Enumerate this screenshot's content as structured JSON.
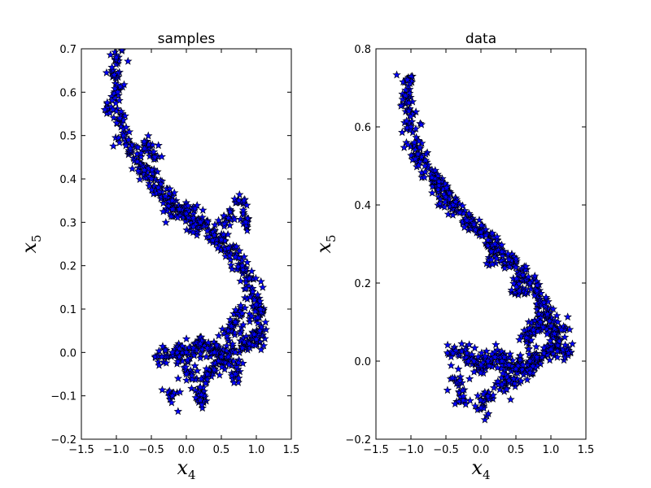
{
  "chart_data": [
    {
      "type": "scatter",
      "title": "samples",
      "xlabel_main": "x",
      "xlabel_sub": "4",
      "ylabel_main": "x",
      "ylabel_sub": "5",
      "xlim": [
        -1.5,
        1.5
      ],
      "ylim": [
        -0.2,
        0.7
      ],
      "xticks": [
        -1.5,
        -1.0,
        -0.5,
        0.0,
        0.5,
        1.0,
        1.5
      ],
      "xtick_labels": [
        "−1.5",
        "−1.0",
        "−0.5",
        "0.0",
        "0.5",
        "1.0",
        "1.5"
      ],
      "yticks": [
        -0.2,
        -0.1,
        0.0,
        0.1,
        0.2,
        0.3,
        0.4,
        0.5,
        0.6,
        0.7
      ],
      "ytick_labels": [
        "−0.2",
        "−0.1",
        "0.0",
        "0.1",
        "0.2",
        "0.3",
        "0.4",
        "0.5",
        "0.6",
        "0.7"
      ],
      "marker": "star",
      "marker_color": "#0000ff",
      "edge_color": "#000000",
      "grid": false,
      "points": [
        [
          -1.0,
          0.68
        ],
        [
          -1.03,
          0.64
        ],
        [
          -0.98,
          0.6
        ],
        [
          -1.05,
          0.56
        ],
        [
          -0.95,
          0.54
        ],
        [
          -0.9,
          0.5
        ],
        [
          -0.8,
          0.47
        ],
        [
          -0.7,
          0.44
        ],
        [
          -0.6,
          0.42
        ],
        [
          -0.5,
          0.4
        ],
        [
          -0.4,
          0.38
        ],
        [
          -0.3,
          0.36
        ],
        [
          -0.2,
          0.35
        ],
        [
          -0.1,
          0.33
        ],
        [
          0.0,
          0.32
        ],
        [
          0.1,
          0.31
        ],
        [
          0.2,
          0.3
        ],
        [
          0.3,
          0.28
        ],
        [
          0.4,
          0.27
        ],
        [
          0.5,
          0.26
        ],
        [
          0.6,
          0.24
        ],
        [
          0.7,
          0.22
        ],
        [
          0.8,
          0.2
        ],
        [
          0.9,
          0.17
        ],
        [
          0.95,
          0.14
        ],
        [
          1.0,
          0.11
        ],
        [
          1.02,
          0.08
        ],
        [
          1.05,
          0.05
        ],
        [
          1.0,
          0.03
        ],
        [
          0.9,
          0.02
        ],
        [
          0.8,
          0.01
        ],
        [
          0.7,
          0.0
        ],
        [
          0.6,
          -0.01
        ],
        [
          0.5,
          -0.01
        ],
        [
          0.4,
          0.0
        ],
        [
          0.3,
          0.01
        ],
        [
          0.2,
          0.02
        ],
        [
          0.1,
          0.01
        ],
        [
          0.0,
          0.0
        ],
        [
          -0.1,
          -0.01
        ],
        [
          -0.2,
          0.0
        ],
        [
          -0.35,
          -0.01
        ],
        [
          0.6,
          0.05
        ],
        [
          0.7,
          0.07
        ],
        [
          0.8,
          0.09
        ],
        [
          0.3,
          -0.05
        ],
        [
          0.2,
          -0.08
        ],
        [
          0.4,
          -0.04
        ],
        [
          0.0,
          -0.05
        ],
        [
          -0.2,
          -0.1
        ],
        [
          0.2,
          -0.11
        ],
        [
          0.7,
          -0.05
        ],
        [
          0.85,
          0.3
        ],
        [
          0.75,
          0.35
        ],
        [
          0.6,
          0.31
        ],
        [
          -0.45,
          0.45
        ],
        [
          -0.6,
          0.47
        ],
        [
          -0.2,
          0.33
        ],
        [
          0.1,
          0.29
        ]
      ]
    },
    {
      "type": "scatter",
      "title": "data",
      "xlabel_main": "x",
      "xlabel_sub": "4",
      "ylabel_main": "x",
      "ylabel_sub": "5",
      "xlim": [
        -1.5,
        1.5
      ],
      "ylim": [
        -0.2,
        0.8
      ],
      "xticks": [
        -1.5,
        -1.0,
        -0.5,
        0.0,
        0.5,
        1.0,
        1.5
      ],
      "xtick_labels": [
        "−1.5",
        "−1.0",
        "−0.5",
        "0.0",
        "0.5",
        "1.0",
        "1.5"
      ],
      "yticks": [
        -0.2,
        0.0,
        0.2,
        0.4,
        0.6,
        0.8
      ],
      "ytick_labels": [
        "−0.2",
        "0.0",
        "0.2",
        "0.4",
        "0.6",
        "0.8"
      ],
      "marker": "star",
      "marker_color": "#0000ff",
      "edge_color": "#000000",
      "grid": false,
      "points": [
        [
          -1.05,
          0.72
        ],
        [
          -1.08,
          0.68
        ],
        [
          -1.03,
          0.64
        ],
        [
          -1.0,
          0.6
        ],
        [
          -0.95,
          0.56
        ],
        [
          -0.9,
          0.53
        ],
        [
          -0.8,
          0.5
        ],
        [
          -0.7,
          0.47
        ],
        [
          -0.6,
          0.45
        ],
        [
          -0.5,
          0.42
        ],
        [
          -0.4,
          0.4
        ],
        [
          -0.3,
          0.38
        ],
        [
          -0.2,
          0.36
        ],
        [
          -0.1,
          0.35
        ],
        [
          0.0,
          0.33
        ],
        [
          0.1,
          0.31
        ],
        [
          0.2,
          0.3
        ],
        [
          0.3,
          0.28
        ],
        [
          0.4,
          0.26
        ],
        [
          0.5,
          0.24
        ],
        [
          0.6,
          0.22
        ],
        [
          0.7,
          0.2
        ],
        [
          0.8,
          0.18
        ],
        [
          0.9,
          0.15
        ],
        [
          0.95,
          0.12
        ],
        [
          1.0,
          0.09
        ],
        [
          1.05,
          0.07
        ],
        [
          1.1,
          0.04
        ],
        [
          1.0,
          0.03
        ],
        [
          0.9,
          0.02
        ],
        [
          0.8,
          0.01
        ],
        [
          0.7,
          0.0
        ],
        [
          0.6,
          -0.01
        ],
        [
          0.5,
          -0.02
        ],
        [
          0.4,
          -0.01
        ],
        [
          0.3,
          0.0
        ],
        [
          0.2,
          0.01
        ],
        [
          0.1,
          0.0
        ],
        [
          0.0,
          -0.01
        ],
        [
          -0.1,
          0.0
        ],
        [
          -0.2,
          0.02
        ],
        [
          -0.4,
          0.02
        ],
        [
          0.65,
          0.06
        ],
        [
          0.75,
          0.08
        ],
        [
          0.85,
          0.1
        ],
        [
          0.3,
          -0.06
        ],
        [
          0.1,
          -0.09
        ],
        [
          0.0,
          -0.12
        ],
        [
          -0.3,
          -0.05
        ],
        [
          -0.25,
          -0.09
        ],
        [
          0.4,
          -0.05
        ],
        [
          0.7,
          -0.03
        ],
        [
          1.25,
          0.02
        ],
        [
          1.15,
          0.08
        ],
        [
          -0.45,
          0.43
        ],
        [
          -0.6,
          0.46
        ],
        [
          0.15,
          0.26
        ],
        [
          0.55,
          0.18
        ]
      ]
    }
  ]
}
